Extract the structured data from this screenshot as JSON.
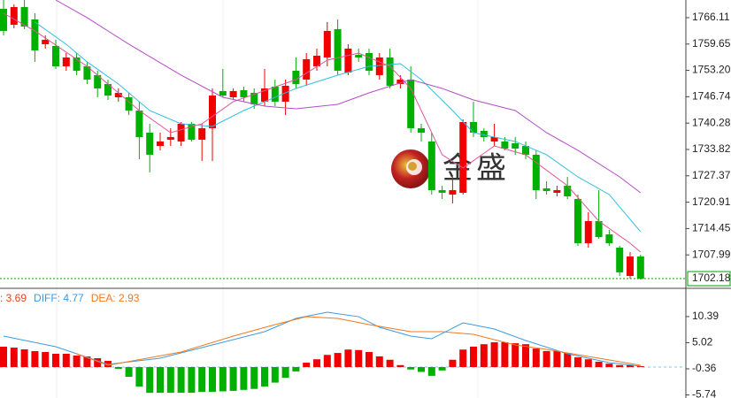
{
  "chart_data": [
    {
      "type": "candlestick",
      "up_color": "#f00000",
      "down_color": "#00b000",
      "ylim": [
        1700.02,
        1770.44
      ],
      "yticks": [
        1766.11,
        1759.65,
        {
          "value": 1753.2,
          "label": "1753.20"
        },
        1746.74,
        1740.28,
        1733.82,
        1727.37,
        1720.91,
        1714.45,
        1707.99
      ],
      "last_price": 1702.18,
      "last_price_color": "#00a000",
      "watermark": [
        "金",
        "盛"
      ],
      "ohlc": [
        [
          1768.28,
          1770.44,
          1761.78,
          1762.86
        ],
        [
          1764.38,
          1769.36,
          1763.51,
          1768.71
        ],
        [
          1768.71,
          1770.44,
          1763.29,
          1763.94
        ],
        [
          1765.68,
          1767.19,
          1755.28,
          1758.09
        ],
        [
          1759.61,
          1761.78,
          1758.53,
          1760.69
        ],
        [
          1759.18,
          1760.69,
          1753.54,
          1754.19
        ],
        [
          1754.19,
          1757.44,
          1753.11,
          1756.36
        ],
        [
          1756.36,
          1757.44,
          1752.03,
          1753.11
        ],
        [
          1754.19,
          1755.28,
          1749.86,
          1750.94
        ],
        [
          1752.03,
          1753.11,
          1746.61,
          1748.78
        ],
        [
          1749.86,
          1750.94,
          1745.96,
          1747.04
        ],
        [
          1746.61,
          1748.78,
          1745.53,
          1747.69
        ],
        [
          1746.61,
          1747.69,
          1742.28,
          1743.36
        ],
        [
          1743.36,
          1745.53,
          1731.44,
          1736.86
        ],
        [
          1737.94,
          1740.11,
          1728.19,
          1732.53
        ],
        [
          1734.69,
          1737.94,
          1733.61,
          1735.78
        ],
        [
          1736.21,
          1739.03,
          1734.69,
          1736.86
        ],
        [
          1735.78,
          1740.54,
          1734.69,
          1740.11
        ],
        [
          1740.11,
          1740.54,
          1735.78,
          1736.21
        ],
        [
          1736.21,
          1740.11,
          1731.01,
          1739.03
        ],
        [
          1739.03,
          1748.78,
          1731.01,
          1747.04
        ],
        [
          1748.13,
          1753.54,
          1746.61,
          1747.04
        ],
        [
          1746.61,
          1748.78,
          1745.96,
          1748.13
        ],
        [
          1748.34,
          1749.21,
          1745.53,
          1746.61
        ],
        [
          1747.69,
          1748.78,
          1743.79,
          1744.88
        ],
        [
          1745.53,
          1753.54,
          1744.44,
          1748.78
        ],
        [
          1749.21,
          1750.94,
          1744.44,
          1745.53
        ],
        [
          1745.53,
          1750.94,
          1742.28,
          1749.43
        ],
        [
          1753.11,
          1756.36,
          1748.78,
          1749.86
        ],
        [
          1750.94,
          1757.44,
          1749.43,
          1755.93
        ],
        [
          1754.19,
          1758.53,
          1753.11,
          1756.79
        ],
        [
          1756.36,
          1765.03,
          1754.19,
          1762.86
        ],
        [
          1763.29,
          1765.68,
          1752.03,
          1753.11
        ],
        [
          1752.68,
          1759.61,
          1752.03,
          1758.53
        ],
        [
          1757.01,
          1758.53,
          1755.28,
          1756.36
        ],
        [
          1757.44,
          1758.53,
          1752.03,
          1753.11
        ],
        [
          1752.03,
          1757.44,
          1750.94,
          1756.36
        ],
        [
          1756.36,
          1758.53,
          1748.78,
          1749.43
        ],
        [
          1749.86,
          1752.03,
          1748.78,
          1750.94
        ],
        [
          1750.94,
          1754.19,
          1737.94,
          1739.03
        ],
        [
          1739.03,
          1740.11,
          1735.78,
          1737.94
        ],
        [
          1735.78,
          1737.94,
          1722.78,
          1723.86
        ],
        [
          1723.86,
          1724.94,
          1721.69,
          1723.21
        ],
        [
          1722.78,
          1727.11,
          1720.61,
          1723.86
        ],
        [
          1723.21,
          1741.19,
          1722.78,
          1740.54
        ],
        [
          1740.54,
          1745.53,
          1736.86,
          1737.94
        ],
        [
          1738.38,
          1739.03,
          1735.78,
          1736.86
        ],
        [
          1735.78,
          1740.11,
          1734.69,
          1736.86
        ],
        [
          1735.78,
          1736.86,
          1733.61,
          1734.04
        ],
        [
          1735.34,
          1736.86,
          1732.53,
          1734.04
        ],
        [
          1734.69,
          1735.78,
          1731.44,
          1732.53
        ],
        [
          1732.53,
          1733.61,
          1721.69,
          1723.86
        ],
        [
          1724.29,
          1726.03,
          1722.78,
          1723.64
        ],
        [
          1723.21,
          1724.94,
          1722.34,
          1723.86
        ],
        [
          1724.94,
          1727.11,
          1721.69,
          1722.34
        ],
        [
          1721.69,
          1722.78,
          1710.21,
          1710.86
        ],
        [
          1710.86,
          1718.44,
          1709.77,
          1716.28
        ],
        [
          1716.28,
          1723.86,
          1711.94,
          1712.37
        ],
        [
          1713.02,
          1714.11,
          1710.21,
          1710.86
        ],
        [
          1709.77,
          1710.21,
          1702.84,
          1703.71
        ],
        [
          1702.84,
          1708.69,
          1702.18,
          1707.61
        ],
        [
          1707.61,
          1708.04,
          1701.96,
          1702.18
        ]
      ],
      "lines": [
        {
          "color": "#e0559a",
          "x": [
            0,
            3,
            8,
            13,
            16,
            19,
            22,
            28,
            31,
            34,
            37,
            39,
            42,
            44,
            47,
            50,
            54,
            57,
            60,
            61
          ],
          "values": [
            1767.19,
            1762.86,
            1754.19,
            1743.36,
            1737.94,
            1740.11,
            1745.53,
            1750.94,
            1755.71,
            1757.44,
            1754.19,
            1748.78,
            1732.53,
            1729.28,
            1734.69,
            1732.53,
            1724.94,
            1716.28,
            1710.86,
            1708.69
          ]
        },
        {
          "color": "#33bde0",
          "x": [
            3,
            6,
            8,
            11,
            14,
            17,
            20,
            23,
            28,
            32,
            35,
            38,
            40,
            43,
            45,
            49,
            52,
            55,
            58,
            61
          ],
          "values": [
            1765.03,
            1759.61,
            1755.28,
            1749.86,
            1743.36,
            1740.11,
            1739.46,
            1743.36,
            1748.78,
            1752.03,
            1754.19,
            1754.84,
            1750.94,
            1743.36,
            1737.94,
            1735.78,
            1732.53,
            1727.11,
            1722.78,
            1713.68
          ]
        },
        {
          "color": "#b44cc8",
          "x": [
            5,
            8,
            12,
            17,
            21,
            25,
            28,
            32,
            35,
            39,
            42,
            45,
            49,
            52,
            55,
            59,
            61
          ],
          "values": [
            1770.44,
            1766.11,
            1759.61,
            1752.03,
            1746.61,
            1744.44,
            1743.79,
            1744.88,
            1747.69,
            1750.94,
            1748.78,
            1745.96,
            1743.36,
            1737.94,
            1733.61,
            1727.11,
            1723.21
          ]
        }
      ]
    },
    {
      "type": "macd",
      "up_color": "#f00000",
      "down_color": "#00b000",
      "ylim": [
        -6.37,
        15.84
      ],
      "yticks": [
        10.39,
        5.02,
        -0.36,
        -5.74
      ],
      "legend": [
        {
          "label": ": 3.69",
          "color": "#e8401a"
        },
        {
          "label": "DIFF: 4.77",
          "color": "#3a9be0"
        },
        {
          "label": "DEA: 2.93",
          "color": "#f07820"
        }
      ],
      "values": [
        4.19,
        4.0,
        3.64,
        3.28,
        3.1,
        2.73,
        2.73,
        2.37,
        2.18,
        1.82,
        1.27,
        -0.36,
        -2,
        -4,
        -5.3,
        -5.3,
        -5.3,
        -5.3,
        -5.3,
        -5.1,
        -5.1,
        -5,
        -4.9,
        -4.7,
        -4.5,
        -4,
        -3.2,
        -2.2,
        -0.9,
        0.9,
        1.6,
        2.5,
        2.9,
        3.6,
        3.5,
        3.1,
        2.2,
        1.5,
        0.4,
        -0.5,
        -1,
        -1.8,
        -0.7,
        1.5,
        3.6,
        4.2,
        4.7,
        5.1,
        5.1,
        4.9,
        4.7,
        3.8,
        3.3,
        3.3,
        2.9,
        2,
        1.6,
        1.1,
        0.7,
        0.4,
        0.4,
        0.2
      ],
      "series": [
        {
          "color": "#3a9be0",
          "x": [
            0,
            5,
            10,
            15,
            20,
            25,
            28,
            31,
            34,
            36,
            39,
            41,
            44,
            47,
            50,
            54,
            58,
            61
          ],
          "values": [
            6.37,
            4.19,
            0.55,
            1.82,
            4.55,
            7.28,
            10.01,
            11.28,
            10.37,
            8.19,
            6.37,
            5.82,
            9.1,
            7.83,
            5.46,
            2.73,
            0.91,
            0.18
          ]
        },
        {
          "color": "#f07820",
          "x": [
            7,
            10,
            17,
            22,
            26,
            29,
            32,
            35,
            39,
            42,
            45,
            49,
            52,
            57,
            61
          ],
          "values": [
            2.73,
            0.36,
            3.09,
            6.37,
            8.74,
            10.37,
            10.01,
            8.74,
            7.28,
            7.28,
            6.73,
            4.55,
            3.64,
            1.82,
            0.36
          ]
        }
      ]
    }
  ]
}
